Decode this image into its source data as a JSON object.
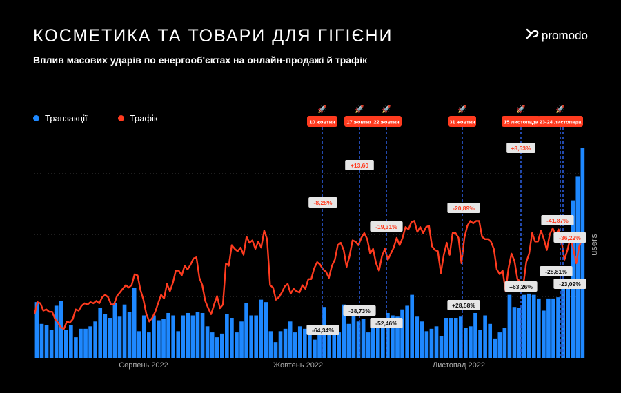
{
  "header": {
    "title": "КОСМЕТИКА ТА ТОВАРИ ДЛЯ ГІГІЄНИ",
    "subtitle": "Вплив масових ударів по енергооб'єктах на онлайн-продажі й трафік",
    "brand": "promodo"
  },
  "colors": {
    "transactions": "#1e88ff",
    "traffic": "#ff3b1f",
    "event_tag": "#ff3b1f",
    "pct_bg": "#e6e6e6"
  },
  "chart_data": {
    "type": "bar+line",
    "y_axis_label": "users",
    "x_axis_labels": [
      {
        "label": "Серпень 2022",
        "index": 16
      },
      {
        "label": "Жовтень 2022",
        "index": 55
      },
      {
        "label": "Листопад 2022",
        "index": 94
      }
    ],
    "legend": [
      {
        "name": "Транзакції",
        "color": "#1e88ff"
      },
      {
        "name": "Трафік",
        "color": "#ff3b1f"
      }
    ],
    "series": [
      {
        "name": "Транзакції",
        "type": "bar",
        "values": [
          46,
          28,
          27,
          23,
          43,
          47,
          23,
          27,
          17,
          24,
          24,
          26,
          30,
          41,
          36,
          33,
          45,
          34,
          44,
          38,
          58,
          22,
          35,
          21,
          35,
          31,
          32,
          37,
          35,
          22,
          35,
          37,
          35,
          38,
          37,
          26,
          21,
          17,
          20,
          36,
          33,
          21,
          30,
          45,
          35,
          35,
          48,
          46,
          22,
          13,
          22,
          24,
          30,
          21,
          26,
          24,
          26,
          15,
          22,
          42,
          24,
          24,
          21,
          44,
          28,
          43,
          30,
          32,
          21,
          25,
          32,
          27,
          37,
          35,
          34,
          40,
          43,
          52,
          34,
          30,
          22,
          24,
          26,
          18,
          33,
          33,
          33,
          34,
          25,
          26,
          37,
          23,
          35,
          28,
          16,
          21,
          25,
          52,
          42,
          41,
          52,
          53,
          52,
          49,
          39,
          49,
          49,
          50,
          58,
          59,
          130,
          150,
          173
        ]
      },
      {
        "name": "Трафік",
        "type": "line",
        "values": [
          36,
          46,
          45,
          39,
          40,
          38,
          38,
          32,
          29,
          25,
          24,
          30,
          29,
          32,
          40,
          39,
          43,
          45,
          44,
          46,
          45,
          47,
          45,
          50,
          52,
          50,
          44,
          44,
          51,
          54,
          57,
          60,
          58,
          60,
          69,
          68,
          56,
          48,
          36,
          30,
          33,
          38,
          45,
          52,
          49,
          61,
          55,
          62,
          72,
          72,
          68,
          76,
          73,
          77,
          82,
          83,
          66,
          60,
          47,
          41,
          36,
          44,
          51,
          41,
          44,
          78,
          76,
          93,
          90,
          88,
          91,
          85,
          100,
          95,
          97,
          90,
          96,
          91,
          105,
          98,
          60,
          58,
          48,
          50,
          54,
          59,
          61,
          53,
          57,
          55,
          54,
          60,
          57,
          65,
          65,
          74,
          79,
          77,
          73,
          71,
          66,
          76,
          81,
          93,
          95,
          89,
          75,
          84,
          97,
          96,
          93,
          99,
          103,
          98,
          86,
          90,
          78,
          72,
          84,
          90,
          81,
          86,
          91,
          99,
          93,
          99,
          108,
          106,
          112,
          113,
          104,
          108,
          103,
          108,
          109,
          92,
          89,
          88,
          70,
          85,
          95,
          85,
          103,
          103,
          99,
          78,
          99,
          109,
          113,
          111,
          113,
          113,
          100,
          98,
          98,
          96,
          90,
          73,
          69,
          72,
          55,
          74,
          86,
          80,
          65,
          63,
          60,
          79,
          86,
          103,
          96,
          96,
          105,
          98,
          89,
          102,
          107,
          101,
          106,
          96,
          81,
          89,
          99,
          90,
          78,
          92,
          98,
          102
        ]
      }
    ],
    "events": [
      {
        "label": "10 жовтня",
        "rocket": "🚀"
      },
      {
        "label": "17 жовтня",
        "rocket": "🚀"
      },
      {
        "label": "22 жовтня",
        "rocket": "🚀"
      },
      {
        "label": "31 жовтня",
        "rocket": "🚀"
      },
      {
        "label": "15 листопада",
        "rocket": "🚀"
      },
      {
        "label": "23-24 листопада",
        "rocket": "🚀"
      }
    ],
    "traffic_changes": [
      "-8,28%",
      "+13,60",
      "-19,31%",
      "-20,89%",
      "+8,53%",
      "-41,87%",
      "-36,22%"
    ],
    "transaction_changes": [
      "-64,34%",
      "-38,73%",
      "-52,46%",
      "+28,58%",
      "+63,26%",
      "-28,81%",
      "-23,09%"
    ],
    "grid": true
  }
}
